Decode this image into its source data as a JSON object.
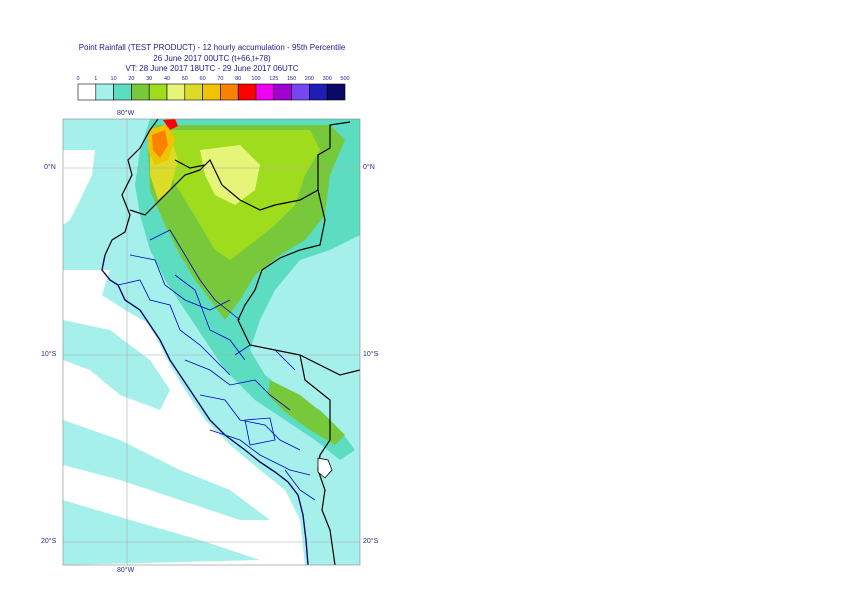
{
  "title": {
    "line1": "Point Rainfall (TEST PRODUCT) - 12 hourly accumulation - 95th Percentile",
    "line2": "26 June 2017 00UTC (t+66,t+78)",
    "line3": "VT: 28 June 2017 18UTC - 29 June 2017 06UTC"
  },
  "legend": {
    "ticks": [
      "0",
      "1",
      "10",
      "20",
      "30",
      "40",
      "50",
      "60",
      "70",
      "80",
      "100",
      "125",
      "150",
      "200",
      "300",
      "500"
    ],
    "colors": [
      "#ffffff",
      "#a6f0ec",
      "#5cdcc0",
      "#78c83c",
      "#a0dc1e",
      "#e6f578",
      "#dcdc28",
      "#f0c300",
      "#fa8200",
      "#ff0000",
      "#f000f0",
      "#a000d2",
      "#7846f0",
      "#1e1eb4",
      "#0a0a64"
    ]
  },
  "map": {
    "lon_top": "80°W",
    "lon_bottom": "80°W",
    "lat_labels_left": [
      "0°N",
      "10°S",
      "20°S"
    ],
    "lat_labels_right": [
      "0°N",
      "10°S",
      "20°S"
    ],
    "ocean_color": "#a6f0ec",
    "dry_color": "#ffffff",
    "border_color": "#000000",
    "province_color": "#0000c8",
    "grid_color": "#aaaaaa"
  }
}
